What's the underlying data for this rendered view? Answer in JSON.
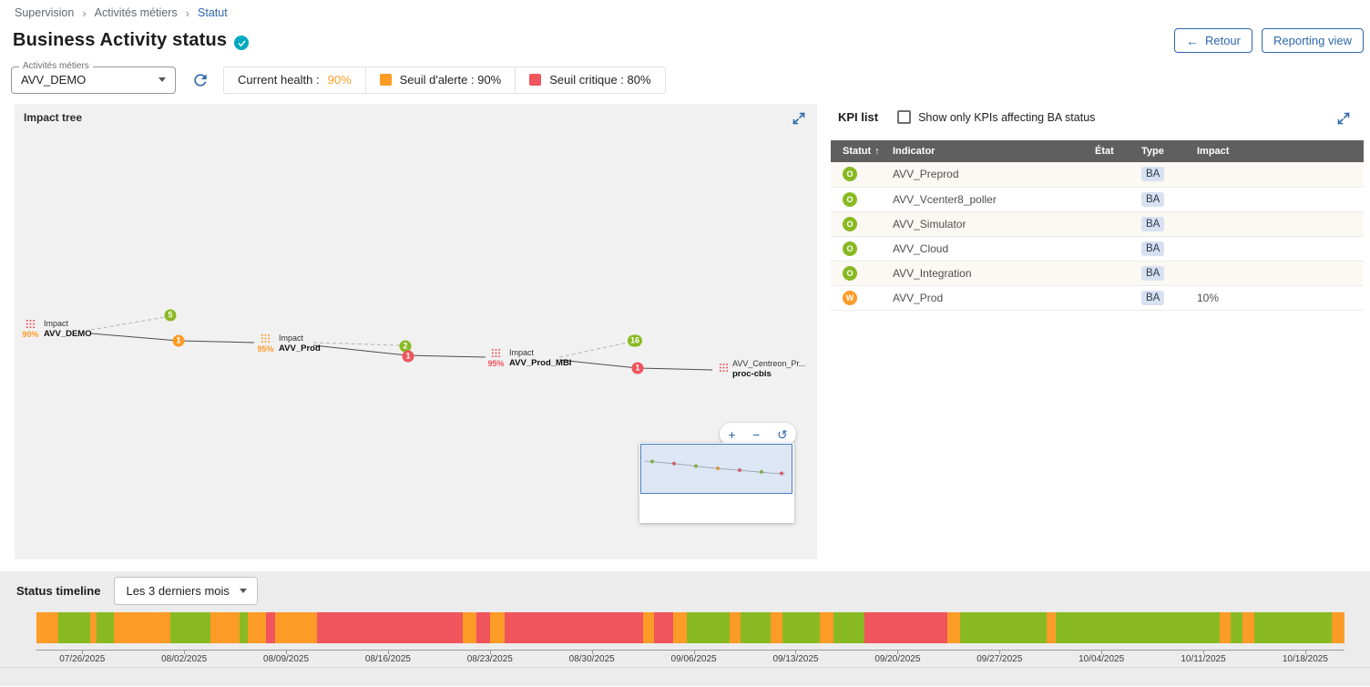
{
  "colors": {
    "ok": "#88b922",
    "warning": "#fd9b27",
    "critical": "#f0545c",
    "accent": "#2e68aa",
    "teal": "#00a9c1"
  },
  "breadcrumb": {
    "items": [
      "Supervision",
      "Activités métiers",
      "Statut"
    ],
    "separator": "›"
  },
  "header": {
    "title": "Business Activity status",
    "back_icon": "←",
    "back_label": "Retour",
    "reporting_label": "Reporting view"
  },
  "controls": {
    "select_label": "Activités métiers",
    "select_value": "AVV_DEMO",
    "legend": {
      "health_label": "Current health :",
      "health_value": "90%",
      "warning_label": "Seuil d'alerte : 90%",
      "critical_label": "Seuil critique : 80%"
    }
  },
  "impact_tree": {
    "title": "Impact tree",
    "zoom_in": "+",
    "zoom_out": "−",
    "zoom_reset": "↺",
    "nodes": [
      {
        "percent": "90%",
        "percent_severity": "warning",
        "top_label": "Impact",
        "name": "AVV_DEMO",
        "icon_severity": "critical"
      },
      {
        "percent": "95%",
        "percent_severity": "warning",
        "top_label": "Impact",
        "name": "AVV_Prod",
        "icon_severity": "warning"
      },
      {
        "percent": "95%",
        "percent_severity": "critical",
        "top_label": "Impact",
        "name": "AVV_Prod_MBI",
        "icon_severity": "critical"
      },
      {
        "percent": "",
        "percent_severity": "critical",
        "top_label": "AVV_Centreon_Pr...",
        "name": "proc-cbis",
        "icon_severity": "critical"
      }
    ],
    "badges": [
      {
        "value": "5",
        "severity": "ok"
      },
      {
        "value": "1",
        "severity": "warning"
      },
      {
        "value": "2",
        "severity": "ok"
      },
      {
        "value": "1",
        "severity": "critical"
      },
      {
        "value": "16",
        "severity": "ok"
      },
      {
        "value": "1",
        "severity": "critical"
      }
    ]
  },
  "kpi_list": {
    "title": "KPI list",
    "filter_label": "Show only KPIs affecting BA status",
    "sort_icon": "↑",
    "columns": [
      "Statut",
      "Indicator",
      "État",
      "Type",
      "Impact"
    ],
    "rows": [
      {
        "status": "O",
        "status_severity": "ok",
        "indicator": "AVV_Preprod",
        "etat": "",
        "type": "BA",
        "impact": ""
      },
      {
        "status": "O",
        "status_severity": "ok",
        "indicator": "AVV_Vcenter8_poller",
        "etat": "",
        "type": "BA",
        "impact": ""
      },
      {
        "status": "O",
        "status_severity": "ok",
        "indicator": "AVV_Simulator",
        "etat": "",
        "type": "BA",
        "impact": ""
      },
      {
        "status": "O",
        "status_severity": "ok",
        "indicator": "AVV_Cloud",
        "etat": "",
        "type": "BA",
        "impact": ""
      },
      {
        "status": "O",
        "status_severity": "ok",
        "indicator": "AVV_Integration",
        "etat": "",
        "type": "BA",
        "impact": ""
      },
      {
        "status": "W",
        "status_severity": "warning",
        "indicator": "AVV_Prod",
        "etat": "",
        "type": "BA",
        "impact": "10%"
      }
    ]
  },
  "timeline": {
    "title": "Status timeline",
    "period": "Les 3 derniers mois",
    "dates": [
      "07/26/2025",
      "08/02/2025",
      "08/09/2025",
      "08/16/2025",
      "08/23/2025",
      "08/30/2025",
      "09/06/2025",
      "09/13/2025",
      "09/20/2025",
      "09/27/2025",
      "10/04/2025",
      "10/11/2025",
      "10/18/2025"
    ],
    "segments": [
      {
        "status": "warning",
        "w": 1.7
      },
      {
        "status": "ok",
        "w": 2.4
      },
      {
        "status": "warning",
        "w": 0.5
      },
      {
        "status": "ok",
        "w": 1.3
      },
      {
        "status": "warning",
        "w": 4.3
      },
      {
        "status": "ok",
        "w": 3.1
      },
      {
        "status": "warning",
        "w": 2.2
      },
      {
        "status": "ok",
        "w": 0.6
      },
      {
        "status": "warning",
        "w": 1.4
      },
      {
        "status": "critical",
        "w": 0.7
      },
      {
        "status": "warning",
        "w": 3.2
      },
      {
        "status": "critical",
        "w": 11.1
      },
      {
        "status": "warning",
        "w": 1.1
      },
      {
        "status": "critical",
        "w": 1.0
      },
      {
        "status": "warning",
        "w": 1.1
      },
      {
        "status": "critical",
        "w": 10.6
      },
      {
        "status": "warning",
        "w": 0.8
      },
      {
        "status": "critical",
        "w": 1.5
      },
      {
        "status": "warning",
        "w": 1.0
      },
      {
        "status": "ok",
        "w": 3.3
      },
      {
        "status": "warning",
        "w": 0.8
      },
      {
        "status": "ok",
        "w": 2.3
      },
      {
        "status": "warning",
        "w": 0.9
      },
      {
        "status": "ok",
        "w": 2.9
      },
      {
        "status": "warning",
        "w": 1.0
      },
      {
        "status": "ok",
        "w": 2.4
      },
      {
        "status": "critical",
        "w": 6.3
      },
      {
        "status": "warning",
        "w": 1.0
      },
      {
        "status": "ok",
        "w": 6.6
      },
      {
        "status": "warning",
        "w": 0.7
      },
      {
        "status": "ok",
        "w": 12.5
      },
      {
        "status": "warning",
        "w": 0.8
      },
      {
        "status": "ok",
        "w": 0.9
      },
      {
        "status": "warning",
        "w": 0.9
      },
      {
        "status": "ok",
        "w": 5.9
      },
      {
        "status": "warning",
        "w": 1.0
      }
    ]
  }
}
